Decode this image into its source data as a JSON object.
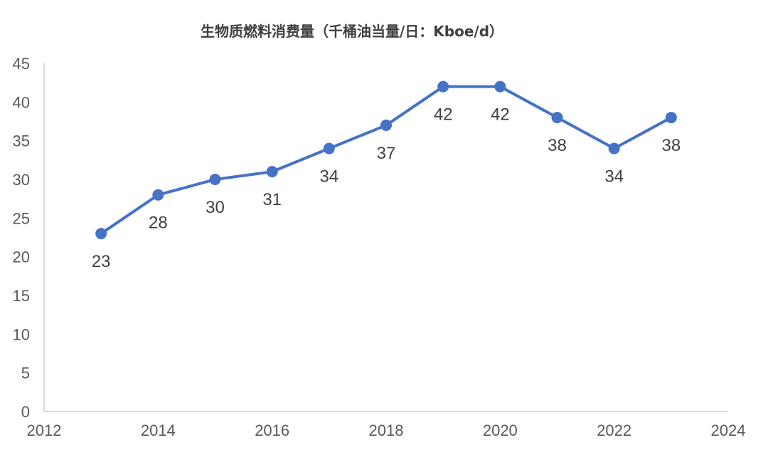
{
  "chart_data": {
    "type": "line",
    "title": "生物质燃料消费量（千桶油当量/日：Kboe/d）",
    "xlabel": "",
    "ylabel": "",
    "xlim": [
      2012,
      2024
    ],
    "ylim": [
      0,
      45
    ],
    "x_ticks": [
      2012,
      2014,
      2016,
      2018,
      2020,
      2022,
      2024
    ],
    "y_ticks": [
      0,
      5,
      10,
      15,
      20,
      25,
      30,
      35,
      40,
      45
    ],
    "grid": false,
    "legend": "none",
    "series": [
      {
        "color": "#4472C4",
        "points": [
          {
            "x": 2013,
            "y": 23,
            "label_pos": "below"
          },
          {
            "x": 2014,
            "y": 28,
            "label_pos": "below"
          },
          {
            "x": 2015,
            "y": 30,
            "label_pos": "below"
          },
          {
            "x": 2016,
            "y": 31,
            "label_pos": "below"
          },
          {
            "x": 2017,
            "y": 34,
            "label_pos": "below"
          },
          {
            "x": 2018,
            "y": 37,
            "label_pos": "below"
          },
          {
            "x": 2019,
            "y": 42,
            "label_pos": "below"
          },
          {
            "x": 2020,
            "y": 42,
            "label_pos": "below"
          },
          {
            "x": 2021,
            "y": 38,
            "label_pos": "below"
          },
          {
            "x": 2022,
            "y": 34,
            "label_pos": "below"
          },
          {
            "x": 2023,
            "y": 38,
            "label_pos": "below"
          }
        ]
      }
    ],
    "axis_color": "#BFBFBF"
  }
}
